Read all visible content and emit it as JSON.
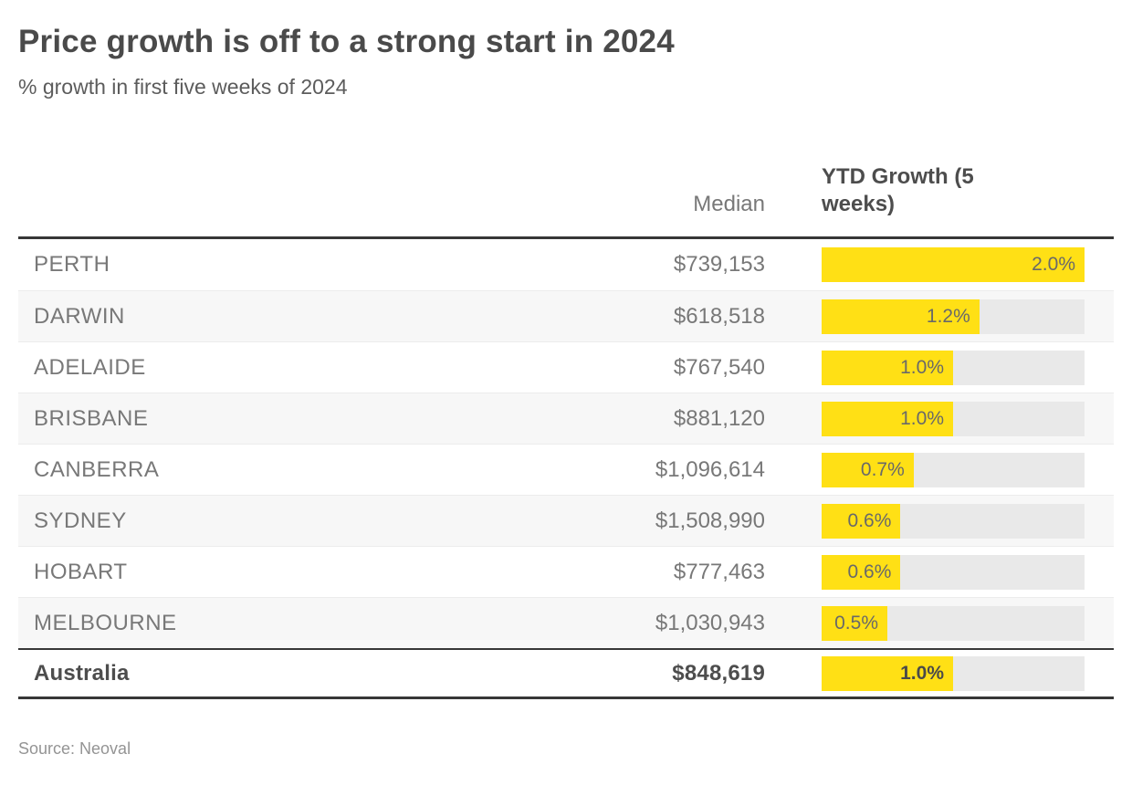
{
  "header": {
    "title": "Price growth is off to a strong start in 2024",
    "subtitle": "% growth in first five weeks of 2024"
  },
  "footer": {
    "source": "Source: Neoval"
  },
  "colors": {
    "bar_yellow": "#ffe015",
    "bar_track": "#e9e9e9",
    "row_alt_bg": "#f7f7f7",
    "rule_dark": "#373737",
    "text_dark": "#4a4a4a",
    "text_gray": "#787878"
  },
  "chart_data": {
    "type": "bar",
    "title": "Price growth is off to a strong start in 2024",
    "subtitle": "% growth in first five weeks of 2024",
    "orientation": "horizontal",
    "categories": [
      "PERTH",
      "DARWIN",
      "ADELAIDE",
      "BRISBANE",
      "CANBERRA",
      "SYDNEY",
      "HOBART",
      "MELBOURNE",
      "Australia"
    ],
    "series": [
      {
        "name": "Median",
        "values": [
          "$739,153",
          "$618,518",
          "$767,540",
          "$881,120",
          "$1,096,614",
          "$1,508,990",
          "$777,463",
          "$1,030,943",
          "$848,619"
        ]
      },
      {
        "name": "YTD Growth (5 weeks)",
        "values": [
          2.0,
          1.2,
          1.0,
          1.0,
          0.7,
          0.6,
          0.6,
          0.5,
          1.0
        ]
      }
    ],
    "value_labels": [
      "2.0%",
      "1.2%",
      "1.0%",
      "1.0%",
      "0.7%",
      "0.6%",
      "0.6%",
      "0.5%",
      "1.0%"
    ],
    "xlim": [
      0,
      2.0
    ],
    "grid": false,
    "legend": false,
    "total_row_index": 8,
    "source": "Source: Neoval"
  }
}
